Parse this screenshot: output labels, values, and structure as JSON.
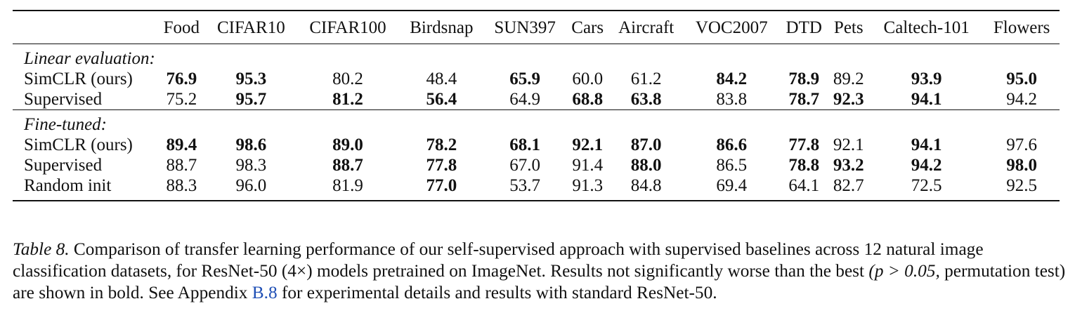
{
  "table": {
    "columns": [
      "Food",
      "CIFAR10",
      "CIFAR100",
      "Birdsnap",
      "SUN397",
      "Cars",
      "Aircraft",
      "VOC2007",
      "DTD",
      "Pets",
      "Caltech-101",
      "Flowers"
    ],
    "sections": [
      {
        "title": "Linear evaluation:",
        "rows": [
          {
            "label": "SimCLR (ours)",
            "values": [
              "76.9",
              "95.3",
              "80.2",
              "48.4",
              "65.9",
              "60.0",
              "61.2",
              "84.2",
              "78.9",
              "89.2",
              "93.9",
              "95.0"
            ],
            "bold": [
              true,
              true,
              false,
              false,
              true,
              false,
              false,
              true,
              true,
              false,
              true,
              true
            ]
          },
          {
            "label": "Supervised",
            "values": [
              "75.2",
              "95.7",
              "81.2",
              "56.4",
              "64.9",
              "68.8",
              "63.8",
              "83.8",
              "78.7",
              "92.3",
              "94.1",
              "94.2"
            ],
            "bold": [
              false,
              true,
              true,
              true,
              false,
              true,
              true,
              false,
              true,
              true,
              true,
              false
            ]
          }
        ]
      },
      {
        "title": "Fine-tuned:",
        "rows": [
          {
            "label": "SimCLR (ours)",
            "values": [
              "89.4",
              "98.6",
              "89.0",
              "78.2",
              "68.1",
              "92.1",
              "87.0",
              "86.6",
              "77.8",
              "92.1",
              "94.1",
              "97.6"
            ],
            "bold": [
              true,
              true,
              true,
              true,
              true,
              true,
              true,
              true,
              true,
              false,
              true,
              false
            ]
          },
          {
            "label": "Supervised",
            "values": [
              "88.7",
              "98.3",
              "88.7",
              "77.8",
              "67.0",
              "91.4",
              "88.0",
              "86.5",
              "78.8",
              "93.2",
              "94.2",
              "98.0"
            ],
            "bold": [
              false,
              false,
              true,
              true,
              false,
              false,
              true,
              false,
              true,
              true,
              true,
              true
            ]
          },
          {
            "label": "Random init",
            "values": [
              "88.3",
              "96.0",
              "81.9",
              "77.0",
              "53.7",
              "91.3",
              "84.8",
              "69.4",
              "64.1",
              "82.7",
              "72.5",
              "92.5"
            ],
            "bold": [
              false,
              false,
              false,
              true,
              false,
              false,
              false,
              false,
              false,
              false,
              false,
              false
            ]
          }
        ]
      }
    ]
  },
  "caption": {
    "label": "Table 8.",
    "text_1": " Comparison of transfer learning performance of our self-supervised approach with supervised baselines across 12 natural image classification datasets, for ResNet-50 ",
    "multiplier": "(4×)",
    "text_2": " models pretrained on ImageNet. Results not significantly worse than the best ",
    "pvalue": "(p > 0.05,",
    "text_3": " permutation test) are shown in bold. See Appendix ",
    "appendix_link": "B.8",
    "text_4": " for experimental details and results with standard ResNet-50."
  }
}
